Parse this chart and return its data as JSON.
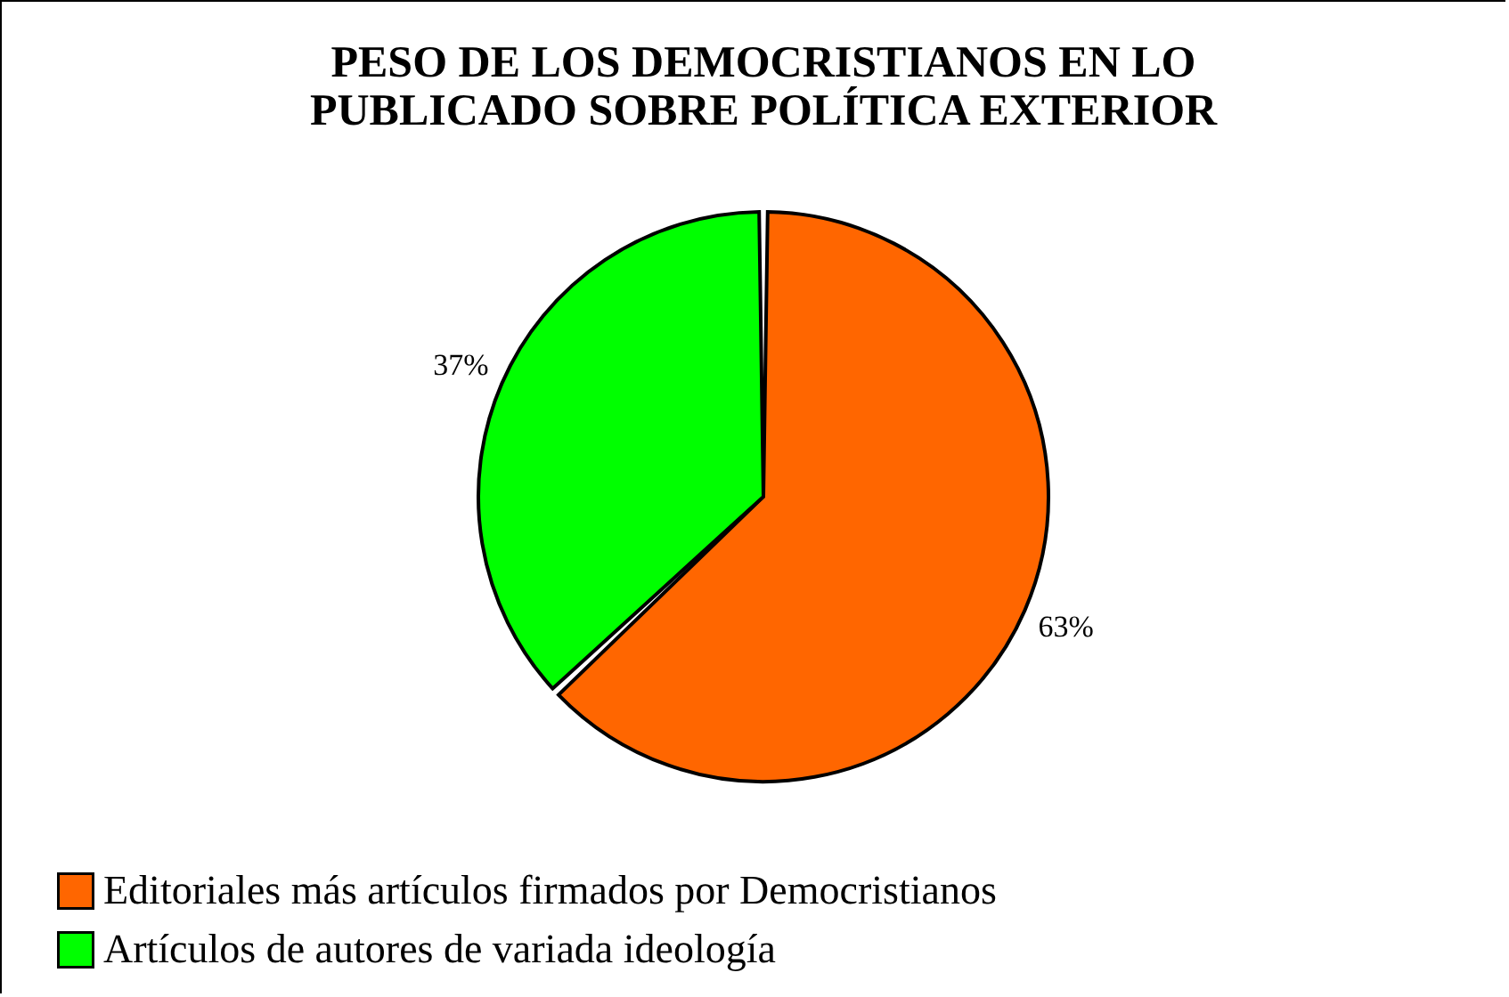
{
  "chart_data": {
    "type": "pie",
    "title": "PESO DE LOS DEMOCRISTIANOS EN LO PUBLICADO SOBRE POLÍTICA EXTERIOR",
    "categories": [
      "Editoriales más artículos firmados por Democristianos",
      "Artículos de autores de variada ideología"
    ],
    "values": [
      63,
      37
    ],
    "colors": [
      "#ff6600",
      "#00ff00"
    ],
    "value_labels": [
      "63%",
      "37%"
    ],
    "legend": "bottom left"
  }
}
